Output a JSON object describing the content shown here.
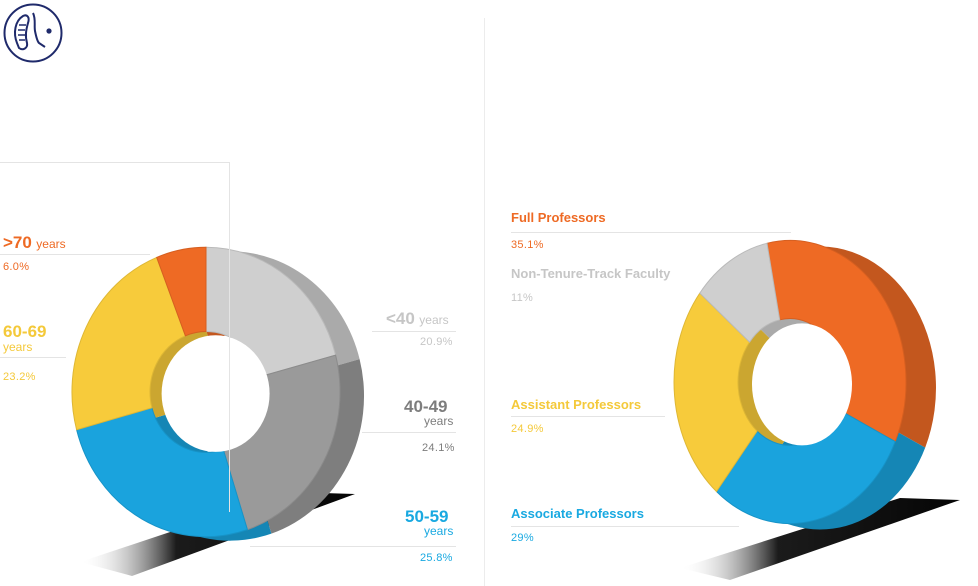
{
  "colors": {
    "orange": "#ee6a24",
    "yellow": "#f7cb3b",
    "light_gray": "#cfcfcf",
    "gray": "#9a9a9a",
    "blue": "#1aa3dd",
    "dark_blue": "#0f7eb6",
    "logo_navy": "#1f2a6b"
  },
  "logo": {
    "icon": "faces-profile-logo-icon"
  },
  "chart_data": [
    {
      "type": "pie",
      "title": "",
      "slices": [
        {
          "label_main": "<40",
          "label_unit": "years",
          "value": 20.9,
          "value_label": "20.9%"
        },
        {
          "label_main": "40-49",
          "label_unit": "years",
          "value": 24.1,
          "value_label": "24.1%"
        },
        {
          "label_main": "50-59",
          "label_unit": "years",
          "value": 25.8,
          "value_label": "25.8%"
        },
        {
          "label_main": "60-69",
          "label_unit": "years",
          "value": 23.2,
          "value_label": "23.2%"
        },
        {
          "label_main": ">70",
          "label_unit": "years",
          "value": 6.0,
          "value_label": "6.0%"
        }
      ]
    },
    {
      "type": "pie",
      "title": "",
      "slices": [
        {
          "label": "Full Professors",
          "value": 35.1,
          "value_label": "35.1%"
        },
        {
          "label": "Associate Professors",
          "value": 29,
          "value_label": "29%"
        },
        {
          "label": "Assistant Professors",
          "value": 24.9,
          "value_label": "24.9%"
        },
        {
          "label": "Non-Tenure-Track Faculty",
          "value": 11,
          "value_label": "11%"
        }
      ]
    }
  ]
}
